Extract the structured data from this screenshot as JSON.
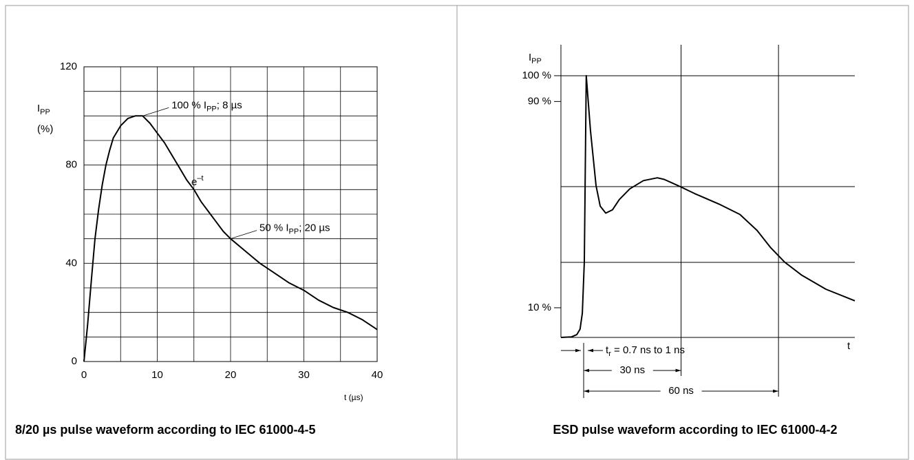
{
  "chart_data": [
    {
      "type": "line",
      "x": [
        0,
        0.5,
        1,
        1.5,
        2,
        2.5,
        3,
        3.5,
        4,
        5,
        6,
        7,
        8,
        9,
        10,
        11,
        12,
        13,
        14,
        15,
        16,
        17,
        18,
        19,
        20,
        22,
        24,
        26,
        28,
        30,
        32,
        34,
        36,
        38,
        40
      ],
      "values": [
        0,
        15,
        33,
        50,
        62,
        72,
        80,
        86,
        91,
        96,
        99,
        100,
        100,
        97,
        93,
        89,
        84,
        79,
        74,
        70,
        65,
        61,
        57,
        53,
        50,
        45,
        40,
        36,
        32,
        29,
        25,
        22,
        20,
        17,
        13
      ],
      "color": "#000000",
      "xlim": [
        0,
        40
      ],
      "ylim": [
        0,
        120
      ],
      "xticks": [
        0,
        10,
        20,
        30,
        40
      ],
      "yticks": [
        0,
        40,
        80,
        120
      ],
      "grid": true,
      "ylabel": [
        "I",
        "PP"
      ],
      "yunit": "(%)",
      "xlabel": "t (µs)",
      "annotations": [
        {
          "parts": [
            "100 % I",
            "PP",
            "; 8 µs"
          ],
          "x": 8,
          "y": 100
        },
        {
          "parts": [
            "e",
            "–t"
          ],
          "script": "super"
        },
        {
          "parts": [
            "50 % I",
            "PP",
            "; 20 µs"
          ],
          "x": 20,
          "y": 50
        }
      ],
      "caption": "8/20 µs pulse waveform according to IEC 61000-4-5"
    },
    {
      "type": "line",
      "x": [
        -7,
        -3.8,
        -2.1,
        -1.1,
        -0.4,
        0.2,
        0.8,
        2.1,
        3.8,
        5.1,
        6.8,
        8.9,
        11,
        14.2,
        18.4,
        22.7,
        24.8,
        29,
        34.3,
        41.7,
        48.1,
        53.4,
        57.6,
        61.9,
        67.2,
        74.6,
        83.5
      ],
      "values": [
        -1.5,
        -1.3,
        -0.4,
        1.7,
        7.9,
        27.9,
        100,
        78.8,
        57.4,
        49.4,
        46.7,
        48,
        52,
        56.1,
        59.3,
        60.4,
        59.8,
        57.4,
        54.2,
        50.2,
        46.2,
        40,
        33.3,
        27.7,
        22.6,
        17.2,
        12.7
      ],
      "color": "#000000",
      "xlim": [
        -7,
        83.5
      ],
      "ylim": [
        -1.5,
        112
      ],
      "yticks": [
        {
          "value": 100,
          "label": "100 %"
        },
        {
          "value": 90,
          "label": "90 %"
        },
        {
          "value": 10,
          "label": "10 %"
        }
      ],
      "ylabel": [
        "I",
        "PP"
      ],
      "xlabel": "t",
      "rise": {
        "parts": [
          "t",
          "r",
          " = 0.7 ns to 1 ns"
        ]
      },
      "dimensions": [
        {
          "from": 0,
          "to": 30,
          "label": "30 ns"
        },
        {
          "from": 0,
          "to": 60,
          "label": "60 ns"
        }
      ],
      "caption": "ESD pulse waveform according to IEC 61000-4-2"
    }
  ]
}
